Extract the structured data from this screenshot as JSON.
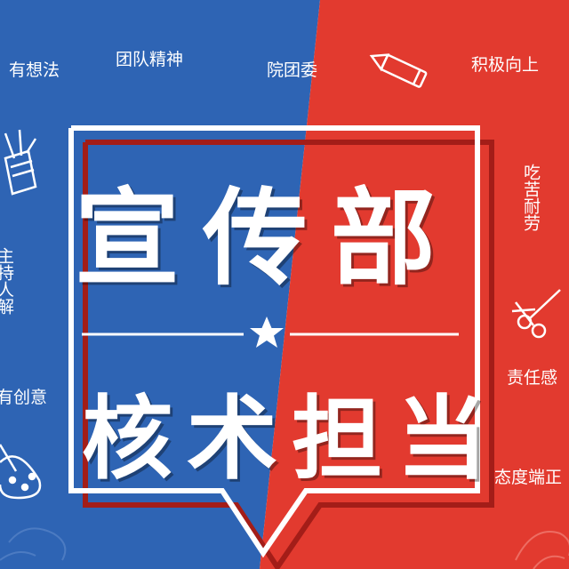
{
  "colors": {
    "blue": "#2e64b4",
    "red": "#e23a2f",
    "white": "#ffffff"
  },
  "title": "宣传部",
  "slogan": "核术担当",
  "left_words": {
    "w1": "有想法",
    "w2": "团队精神",
    "w3_vertical": "主持人解",
    "w4": "有创意"
  },
  "center_word": "院团委",
  "right_words": {
    "w1": "积极向上",
    "w2_vertical": "吃苦耐劳",
    "w3": "责任感",
    "w4": "态度端正"
  },
  "icons": [
    "pencil-cup-icon",
    "pencil-icon",
    "scissors-icon",
    "palette-icon",
    "star-icon"
  ]
}
